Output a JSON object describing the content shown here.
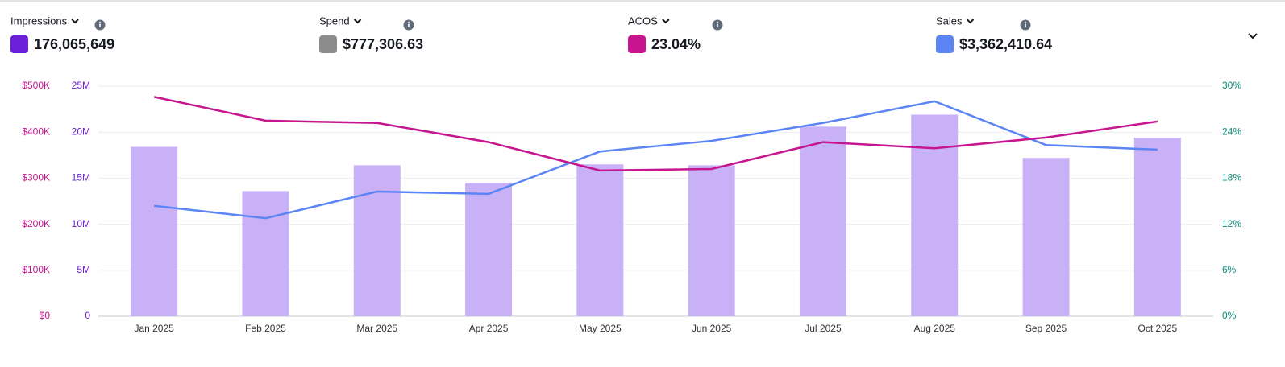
{
  "metrics": [
    {
      "label": "Impressions",
      "value": "176,065,649",
      "color": "#6b1fd6"
    },
    {
      "label": "Spend",
      "value": "$777,306.63",
      "color": "#8c8c8c"
    },
    {
      "label": "ACOS",
      "value": "23.04%",
      "color": "#c7158f"
    },
    {
      "label": "Sales",
      "value": "$3,362,410.64",
      "color": "#5b84f5"
    }
  ],
  "chart_data": {
    "type": "combo",
    "categories": [
      "Jan 2025",
      "Feb 2025",
      "Mar 2025",
      "Apr 2025",
      "May 2025",
      "Jun 2025",
      "Jul 2025",
      "Aug 2025",
      "Sep 2025",
      "Oct 2025"
    ],
    "series": [
      {
        "type": "bar",
        "axis": "y2",
        "color": "#c9b1f7",
        "values": [
          18400000,
          13600000,
          16400000,
          14500000,
          16500000,
          16400000,
          20600000,
          21900000,
          17200000,
          19400000
        ]
      },
      {
        "type": "line",
        "axis": "y",
        "color": "#5b84f5",
        "values": [
          240000,
          213000,
          271000,
          266000,
          358000,
          381000,
          420000,
          467000,
          372000,
          362000
        ]
      },
      {
        "type": "line",
        "axis": "y3",
        "color": "#c7158f",
        "values": [
          28.6,
          25.5,
          25.2,
          22.7,
          19.0,
          19.2,
          22.7,
          21.9,
          23.3,
          25.4
        ]
      }
    ],
    "ylim": [
      0,
      500000
    ],
    "yticks": [
      {
        "value": 0,
        "label": "$0"
      },
      {
        "value": 100000,
        "label": "$100K"
      },
      {
        "value": 200000,
        "label": "$200K"
      },
      {
        "value": 300000,
        "label": "$300K"
      },
      {
        "value": 400000,
        "label": "$400K"
      },
      {
        "value": 500000,
        "label": "$500K"
      }
    ],
    "ytick_color": "#c7158f",
    "y2lim": [
      0,
      25000000
    ],
    "y2ticks": [
      0,
      {
        "value": 5000000,
        "label": "5M"
      },
      {
        "value": 10000000,
        "label": "10M"
      },
      {
        "value": 15000000,
        "label": "15M"
      },
      {
        "value": 20000000,
        "label": "20M"
      },
      {
        "value": 25000000,
        "label": "25M"
      }
    ],
    "y2tick_color": "#6b1fd6",
    "y3lim": [
      0,
      30
    ],
    "y3ticks": [
      {
        "value": 0,
        "label": "0%"
      },
      {
        "value": 6,
        "label": "6%"
      },
      {
        "value": 12,
        "label": "12%"
      },
      {
        "value": 18,
        "label": "18%"
      },
      {
        "value": 24,
        "label": "24%"
      },
      {
        "value": 30,
        "label": "30%"
      }
    ],
    "y3tick_color": "#0b8a7a",
    "grid": true
  }
}
